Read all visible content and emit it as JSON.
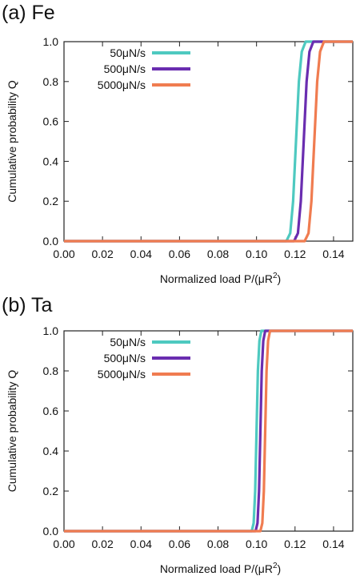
{
  "chart_data": [
    {
      "type": "line",
      "panel_label": "(a) Fe",
      "xlabel": "Normalized load  P/(μR",
      "xlabel_sup": "2",
      "xlabel_end": ")",
      "ylabel": "Cumulative probability  Q",
      "xlim": [
        0,
        0.15
      ],
      "ylim": [
        0,
        1.0
      ],
      "xticks": [
        "0.00",
        "0.02",
        "0.04",
        "0.06",
        "0.08",
        "0.10",
        "0.12",
        "0.14"
      ],
      "yticks": [
        "0.0",
        "0.2",
        "0.4",
        "0.6",
        "0.8",
        "1.0"
      ],
      "legend_position": "top-left",
      "series": [
        {
          "name": "50μN/s",
          "color": "#4ec9c0",
          "x": [
            0,
            0.1155,
            0.1175,
            0.119,
            0.1205,
            0.122,
            0.1235,
            0.1255,
            0.15
          ],
          "y": [
            0,
            0,
            0.04,
            0.2,
            0.5,
            0.8,
            0.95,
            1.0,
            1.0
          ]
        },
        {
          "name": "500μN/s",
          "color": "#6a2db0",
          "x": [
            0,
            0.1195,
            0.1215,
            0.123,
            0.1245,
            0.126,
            0.1275,
            0.1295,
            0.15
          ],
          "y": [
            0,
            0,
            0.04,
            0.2,
            0.5,
            0.8,
            0.95,
            1.0,
            1.0
          ]
        },
        {
          "name": "5000μN/s",
          "color": "#f07c50",
          "x": [
            0,
            0.125,
            0.127,
            0.1285,
            0.13,
            0.1315,
            0.133,
            0.135,
            0.15
          ],
          "y": [
            0,
            0,
            0.04,
            0.2,
            0.5,
            0.8,
            0.95,
            1.0,
            1.0
          ]
        }
      ]
    },
    {
      "type": "line",
      "panel_label": "(b) Ta",
      "xlabel": "Normalized load  P/(μR",
      "xlabel_sup": "2",
      "xlabel_end": ")",
      "ylabel": "Cumulative probability  Q",
      "xlim": [
        0,
        0.15
      ],
      "ylim": [
        0,
        1.0
      ],
      "xticks": [
        "0.00",
        "0.02",
        "0.04",
        "0.06",
        "0.08",
        "0.10",
        "0.12",
        "0.14"
      ],
      "yticks": [
        "0.0",
        "0.2",
        "0.4",
        "0.6",
        "0.8",
        "1.0"
      ],
      "legend_position": "top-left",
      "series": [
        {
          "name": "50μN/s",
          "color": "#4ec9c0",
          "x": [
            0,
            0.0975,
            0.0985,
            0.0993,
            0.1,
            0.1007,
            0.1015,
            0.1025,
            0.15
          ],
          "y": [
            0,
            0,
            0.04,
            0.2,
            0.5,
            0.8,
            0.95,
            1.0,
            1.0
          ]
        },
        {
          "name": "500μN/s",
          "color": "#6a2db0",
          "x": [
            0,
            0.0995,
            0.1005,
            0.1013,
            0.102,
            0.1027,
            0.1035,
            0.1045,
            0.15
          ],
          "y": [
            0,
            0,
            0.04,
            0.2,
            0.5,
            0.8,
            0.95,
            1.0,
            1.0
          ]
        },
        {
          "name": "5000μN/s",
          "color": "#f07c50",
          "x": [
            0,
            0.102,
            0.103,
            0.1038,
            0.1045,
            0.1052,
            0.106,
            0.107,
            0.15
          ],
          "y": [
            0,
            0,
            0.04,
            0.2,
            0.5,
            0.8,
            0.95,
            1.0,
            1.0
          ]
        }
      ]
    }
  ]
}
